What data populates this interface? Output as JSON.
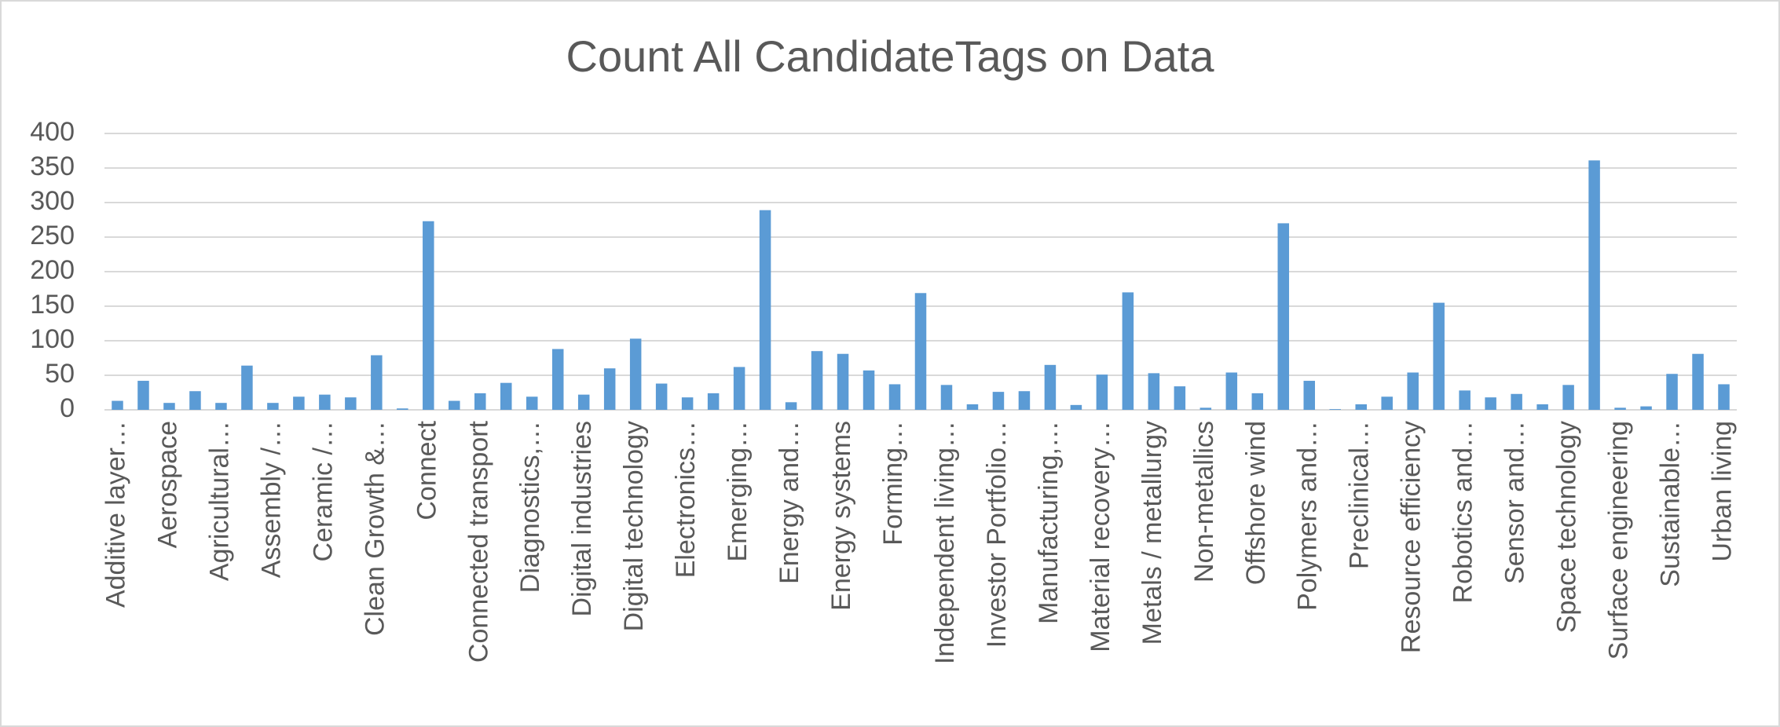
{
  "chart_data": {
    "type": "bar",
    "title": "Count All CandidateTags on Data",
    "categories": [
      "Additive layer…",
      null,
      "Aerospace",
      null,
      "Agricultural…",
      null,
      "Assembly /…",
      null,
      "Ceramic /…",
      null,
      "Clean Growth &…",
      null,
      "Connect",
      null,
      "Connected transport",
      null,
      "Diagnostics,…",
      null,
      "Digital industries",
      null,
      "Digital technology",
      null,
      "Electronics…",
      null,
      "Emerging…",
      null,
      "Energy and…",
      null,
      "Energy systems",
      null,
      "Forming…",
      null,
      "Independent living…",
      null,
      "Investor Portfolio…",
      null,
      "Manufacturing,…",
      null,
      "Material recovery…",
      null,
      "Metals / metallurgy",
      null,
      "Non-metallics",
      null,
      "Offshore wind",
      null,
      "Polymers and…",
      null,
      "Preclinical…",
      null,
      "Resource efficiency",
      null,
      "Robotics and…",
      null,
      "Sensor and…",
      null,
      "Space technology",
      null,
      "Surface engineering",
      null,
      "Sustainable…",
      null,
      "Urban living"
    ],
    "values": [
      13,
      42,
      10,
      27,
      10,
      64,
      10,
      19,
      22,
      18,
      79,
      2,
      273,
      13,
      24,
      39,
      19,
      88,
      22,
      60,
      103,
      38,
      18,
      24,
      62,
      289,
      11,
      85,
      81,
      57,
      37,
      169,
      36,
      8,
      26,
      27,
      65,
      7,
      51,
      170,
      53,
      34,
      3,
      54,
      24,
      270,
      42,
      1,
      8,
      19,
      54,
      155,
      28,
      18,
      23,
      8,
      36,
      361,
      3,
      5,
      52,
      81,
      37
    ],
    "color": "#5b9bd5",
    "ylim": [
      0,
      400
    ],
    "yticks": [
      0,
      50,
      100,
      150,
      200,
      250,
      300,
      350,
      400
    ],
    "grid": true
  }
}
